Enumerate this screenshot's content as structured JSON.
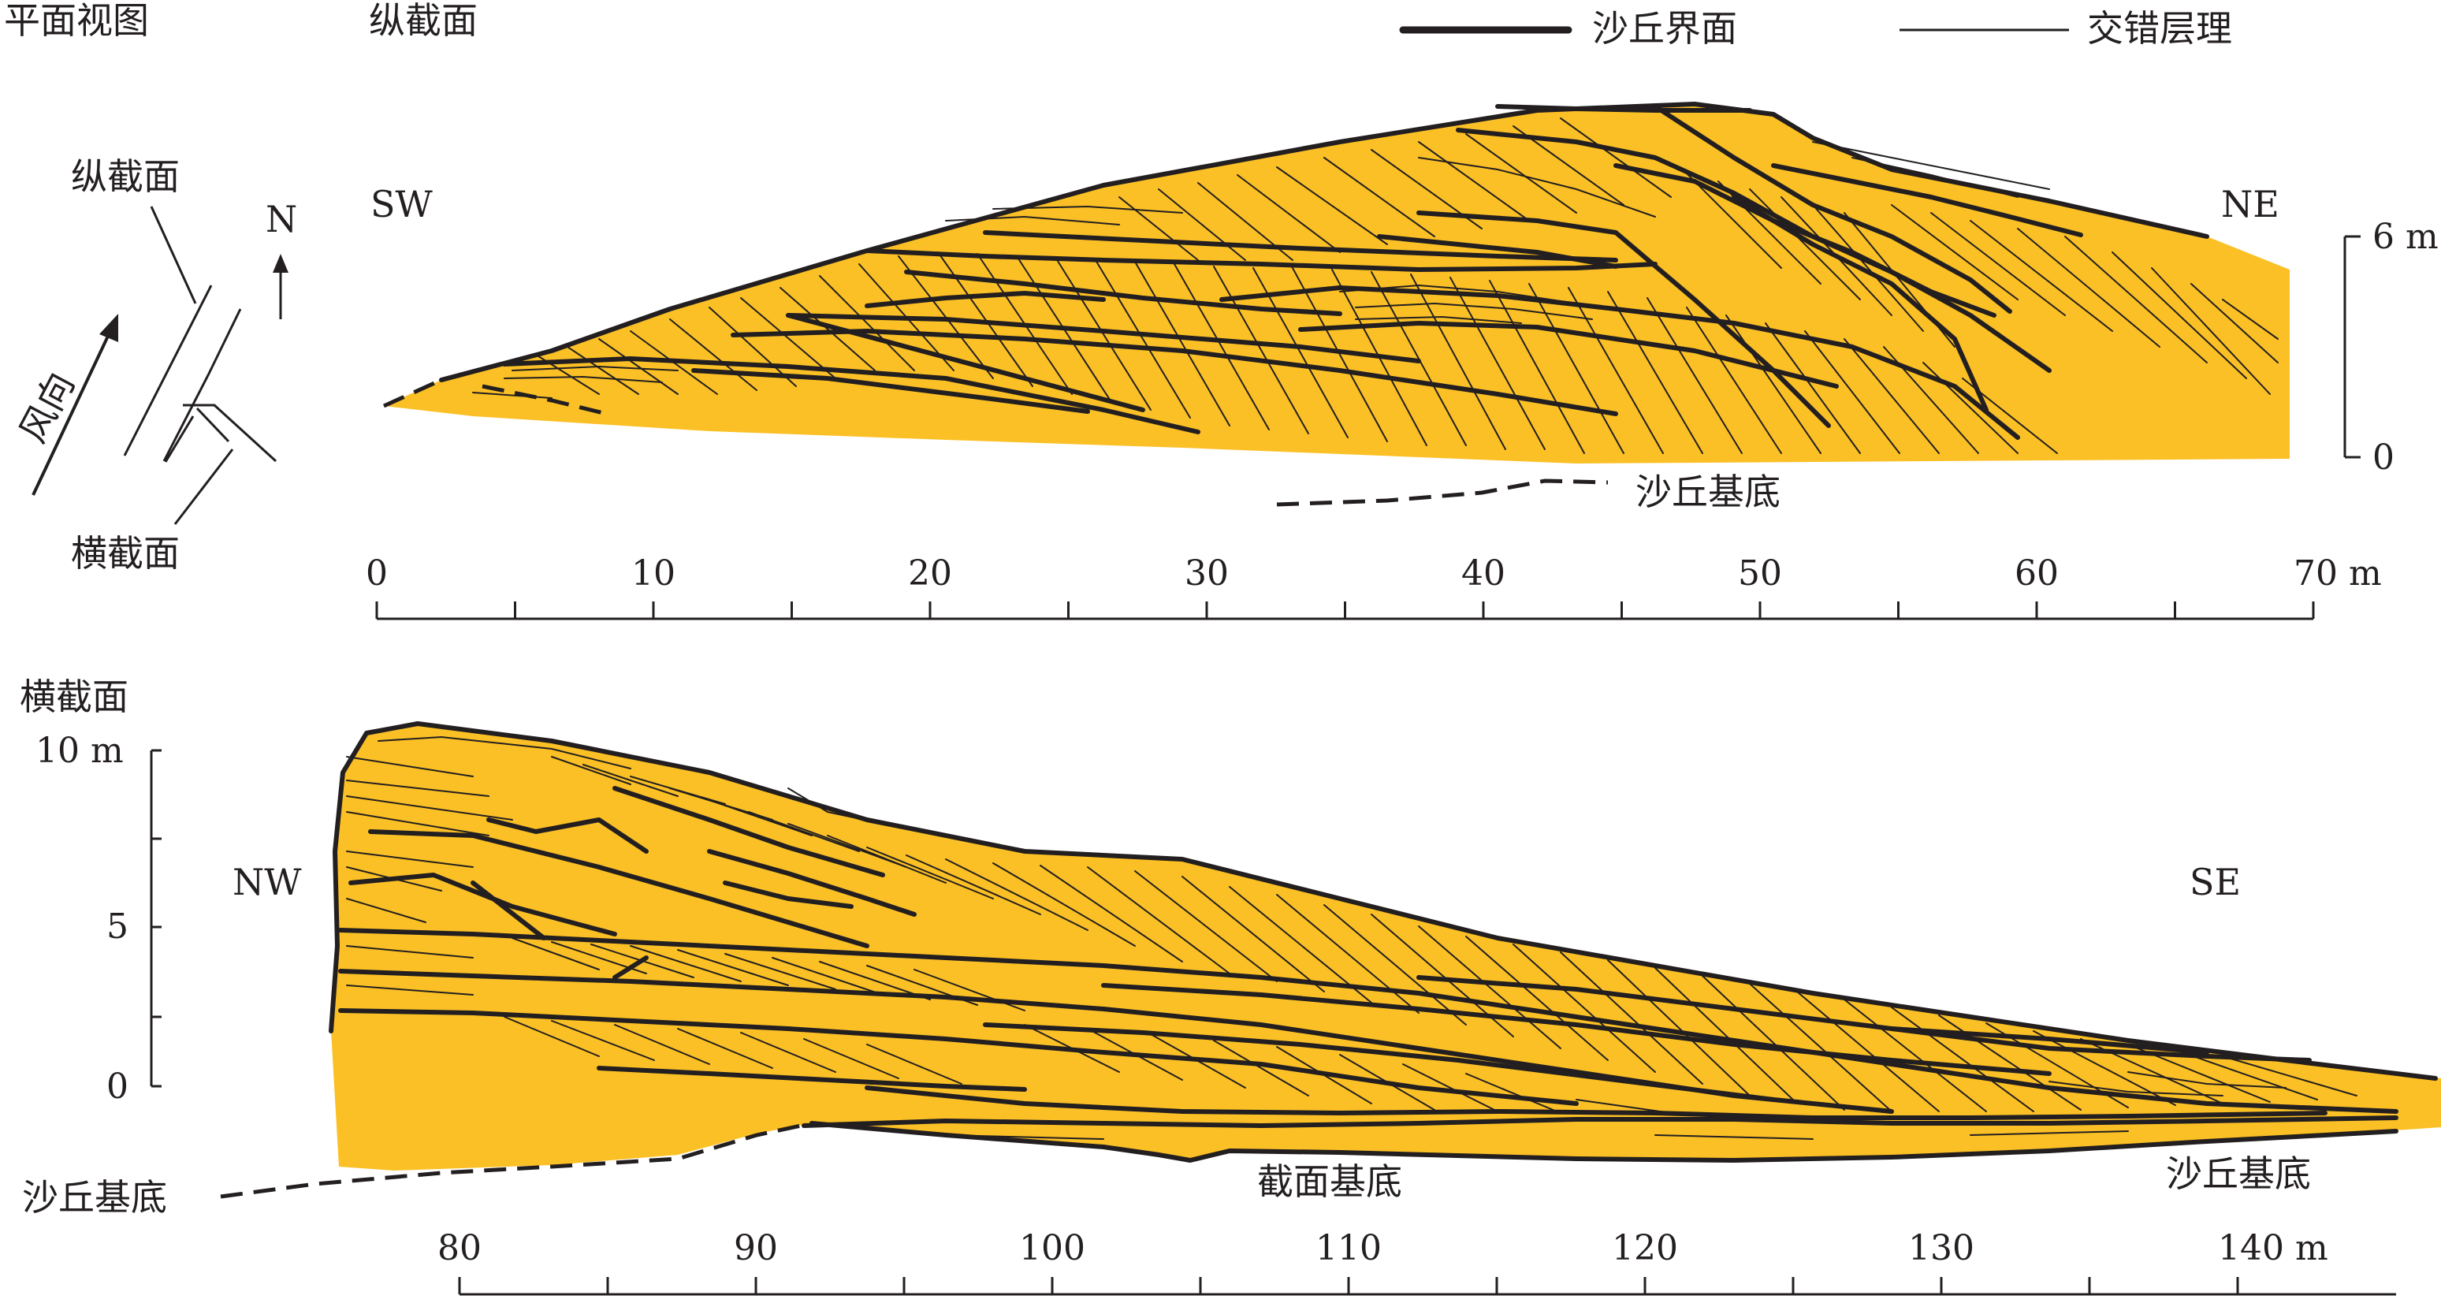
{
  "labels": {
    "plan_view": "平面视图",
    "longitudinal_section": "纵截面",
    "legend_dune_boundary": "沙丘界面",
    "legend_cross_bedding": "交错层理",
    "plan_longitudinal": "纵截面",
    "plan_transverse": "横截面",
    "plan_north": "N",
    "plan_wind": "风向",
    "top_sw": "SW",
    "top_ne": "NE",
    "top_base": "沙丘基底",
    "top_scale_6": "6 m",
    "top_scale_0": "0",
    "transverse_section": "横截面",
    "bottom_nw": "NW",
    "bottom_se": "SE",
    "bottom_base_left": "沙丘基底",
    "bottom_base_mid": "截面基底",
    "bottom_base_right": "沙丘基底",
    "bottom_scale_10": "10 m",
    "bottom_scale_5": "5",
    "bottom_scale_0": "0"
  },
  "top_axis": [
    "0",
    "10",
    "20",
    "30",
    "40",
    "50",
    "60",
    "70 m"
  ],
  "bottom_axis": [
    "80",
    "90",
    "100",
    "110",
    "120",
    "130",
    "140 m"
  ],
  "colors": {
    "sand": "#fbc025",
    "line": "#231f20",
    "background": "#ffffff"
  }
}
